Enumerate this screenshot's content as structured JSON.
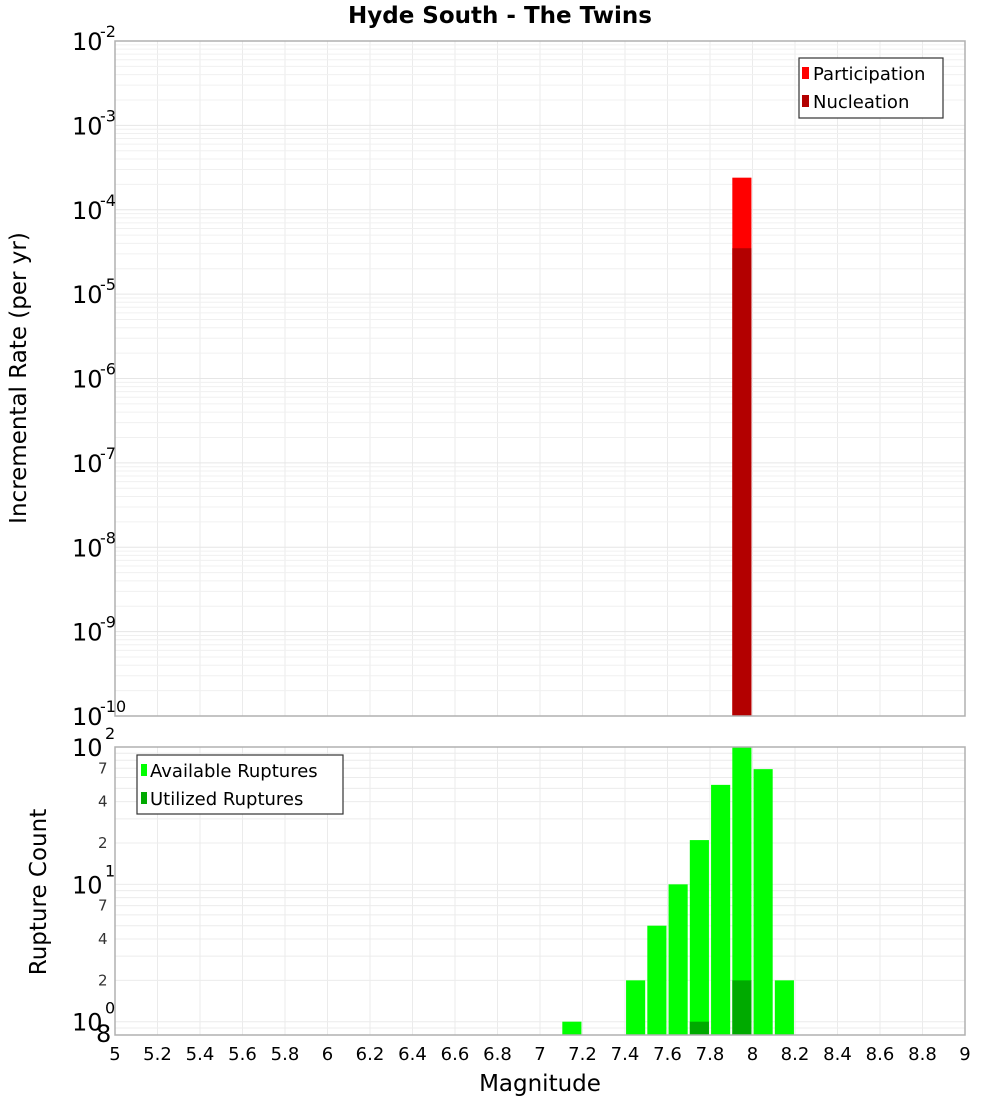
{
  "chart_data": [
    {
      "type": "bar",
      "title": "Hyde South - The Twins",
      "xlabel": "Magnitude",
      "ylabel": "Incremental Rate (per yr)",
      "yscale": "log",
      "ylim": [
        1e-10,
        0.01
      ],
      "xlim": [
        5,
        9
      ],
      "grid": true,
      "legend_position": "upper right",
      "y_tick_labels": [
        "10^-2",
        "10^-3",
        "10^-4",
        "10^-5",
        "10^-6",
        "10^-7",
        "10^-8",
        "10^-9",
        "10^-10"
      ],
      "series": [
        {
          "name": "Participation",
          "color": "#ff0000",
          "x": [
            7.95
          ],
          "values": [
            0.00024
          ]
        },
        {
          "name": "Nucleation",
          "color": "#b30000",
          "x": [
            7.95
          ],
          "values": [
            3.5e-05
          ]
        }
      ],
      "bar_width": 0.09
    },
    {
      "type": "bar",
      "xlabel": "Magnitude",
      "ylabel": "Rupture Count",
      "yscale": "log",
      "ylim": [
        0.8,
        100
      ],
      "xlim": [
        5,
        9
      ],
      "grid": true,
      "legend_position": "upper left",
      "y_tick_labels": [
        "10^2",
        "7",
        "4",
        "2",
        "10^1",
        "7",
        "4",
        "2",
        "10^0",
        "8"
      ],
      "x_tick_labels": [
        "5",
        "5.2",
        "5.4",
        "5.6",
        "5.8",
        "6",
        "6.2",
        "6.4",
        "6.6",
        "6.8",
        "7",
        "7.2",
        "7.4",
        "7.6",
        "7.8",
        "8",
        "8.2",
        "8.4",
        "8.6",
        "8.8",
        "9"
      ],
      "series": [
        {
          "name": "Available Ruptures",
          "color": "#00ff00",
          "x": [
            7.15,
            7.45,
            7.55,
            7.65,
            7.75,
            7.85,
            7.95,
            8.05,
            8.15
          ],
          "values": [
            1,
            2,
            5,
            10,
            21,
            53,
            100,
            69,
            2
          ]
        },
        {
          "name": "Utilized Ruptures",
          "color": "#00aa00",
          "x": [
            7.75,
            7.95
          ],
          "values": [
            1,
            2
          ]
        }
      ],
      "bar_width": 0.09
    }
  ],
  "title": "Hyde South - The Twins",
  "top": {
    "ylabel": "Incremental Rate (per yr)",
    "legend": [
      {
        "label": "Participation",
        "color": "#ff0000"
      },
      {
        "label": "Nucleation",
        "color": "#b30000"
      }
    ]
  },
  "bottom": {
    "ylabel": "Rupture Count",
    "xlabel": "Magnitude",
    "legend": [
      {
        "label": "Available Ruptures",
        "color": "#00ff00"
      },
      {
        "label": "Utilized Ruptures",
        "color": "#00aa00"
      }
    ]
  }
}
